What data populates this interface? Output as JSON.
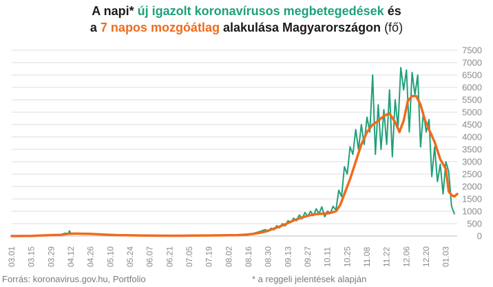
{
  "title": {
    "p1": "A napi* ",
    "p2": "új igazolt koronavírusos megbetegedések",
    "p3": " és",
    "p4": "a ",
    "p5": "7 napos mozgóátlag",
    "p6": " alakulása Magyarországon",
    "p7": " (fő)"
  },
  "footer": {
    "source": "Forrás: koronavirus.gov.hu, Portfolio",
    "note": "* a reggeli jelentések alapján"
  },
  "colors": {
    "daily": "#1fa07a",
    "average": "#ee6b1c",
    "grid": "#dcdcdc",
    "axis_text": "#8a8a8a"
  },
  "chart_data": {
    "type": "line",
    "title": "A napi* új igazolt koronavírusos megbetegedések és a 7 napos mozgóátlag alakulása Magyarországon (fő)",
    "x_ticks": [
      "03.01",
      "03.15",
      "03.29",
      "04.12",
      "04.26",
      "05.10",
      "05.24",
      "06.07",
      "06.21",
      "07.05",
      "07.19",
      "08.02",
      "08.16",
      "08.30",
      "09.13",
      "09.27",
      "10.11",
      "10.25",
      "11.08",
      "11.22",
      "12.06",
      "12.20",
      "01.03"
    ],
    "x_tick_days": [
      0,
      14,
      28,
      42,
      56,
      70,
      84,
      98,
      112,
      126,
      140,
      154,
      168,
      182,
      196,
      210,
      224,
      238,
      252,
      266,
      280,
      294,
      308
    ],
    "y_ticks": [
      0,
      500,
      1000,
      1500,
      2000,
      2500,
      3000,
      3500,
      4000,
      4500,
      5000,
      5500,
      6000,
      6500,
      7000,
      7500
    ],
    "ylim": [
      0,
      7500
    ],
    "y_axis_position": "right",
    "grid": "horizontal",
    "series": [
      {
        "name": "új igazolt koronavírusos megbetegedések",
        "color": "#1fa07a",
        "points": [
          [
            0,
            0
          ],
          [
            14,
            5
          ],
          [
            28,
            40
          ],
          [
            35,
            60
          ],
          [
            38,
            120
          ],
          [
            40,
            100
          ],
          [
            41,
            210
          ],
          [
            42,
            80
          ],
          [
            45,
            110
          ],
          [
            50,
            90
          ],
          [
            55,
            100
          ],
          [
            60,
            70
          ],
          [
            65,
            60
          ],
          [
            70,
            50
          ],
          [
            75,
            40
          ],
          [
            80,
            30
          ],
          [
            90,
            20
          ],
          [
            100,
            15
          ],
          [
            110,
            15
          ],
          [
            120,
            15
          ],
          [
            130,
            20
          ],
          [
            140,
            25
          ],
          [
            150,
            30
          ],
          [
            160,
            40
          ],
          [
            168,
            60
          ],
          [
            172,
            120
          ],
          [
            176,
            180
          ],
          [
            180,
            260
          ],
          [
            182,
            180
          ],
          [
            184,
            320
          ],
          [
            186,
            250
          ],
          [
            188,
            420
          ],
          [
            190,
            330
          ],
          [
            192,
            500
          ],
          [
            194,
            410
          ],
          [
            196,
            620
          ],
          [
            198,
            550
          ],
          [
            200,
            720
          ],
          [
            202,
            620
          ],
          [
            204,
            850
          ],
          [
            206,
            700
          ],
          [
            208,
            950
          ],
          [
            210,
            800
          ],
          [
            212,
            1000
          ],
          [
            214,
            820
          ],
          [
            216,
            1100
          ],
          [
            218,
            900
          ],
          [
            220,
            1180
          ],
          [
            222,
            780
          ],
          [
            224,
            1000
          ],
          [
            226,
            930
          ],
          [
            228,
            1200
          ],
          [
            230,
            1050
          ],
          [
            232,
            1850
          ],
          [
            234,
            1600
          ],
          [
            236,
            2800
          ],
          [
            238,
            2500
          ],
          [
            240,
            3600
          ],
          [
            242,
            3300
          ],
          [
            244,
            4300
          ],
          [
            246,
            3500
          ],
          [
            248,
            4500
          ],
          [
            250,
            3700
          ],
          [
            252,
            4800
          ],
          [
            254,
            4200
          ],
          [
            256,
            6500
          ],
          [
            258,
            3300
          ],
          [
            260,
            5300
          ],
          [
            262,
            3500
          ],
          [
            264,
            5100
          ],
          [
            266,
            3700
          ],
          [
            268,
            5900
          ],
          [
            270,
            3200
          ],
          [
            272,
            5500
          ],
          [
            274,
            4400
          ],
          [
            276,
            6800
          ],
          [
            278,
            5900
          ],
          [
            280,
            6700
          ],
          [
            282,
            4200
          ],
          [
            284,
            6600
          ],
          [
            286,
            5700
          ],
          [
            288,
            6500
          ],
          [
            290,
            3600
          ],
          [
            292,
            5000
          ],
          [
            294,
            4200
          ],
          [
            296,
            4700
          ],
          [
            298,
            2400
          ],
          [
            300,
            3600
          ],
          [
            302,
            2200
          ],
          [
            304,
            2900
          ],
          [
            306,
            1700
          ],
          [
            308,
            3000
          ],
          [
            310,
            2600
          ],
          [
            312,
            1200
          ],
          [
            314,
            900
          ]
        ]
      },
      {
        "name": "7 napos mozgóátlag",
        "color": "#ee6b1c",
        "points": [
          [
            0,
            0
          ],
          [
            14,
            5
          ],
          [
            28,
            40
          ],
          [
            35,
            50
          ],
          [
            40,
            90
          ],
          [
            45,
            100
          ],
          [
            50,
            95
          ],
          [
            55,
            90
          ],
          [
            60,
            75
          ],
          [
            65,
            60
          ],
          [
            70,
            50
          ],
          [
            75,
            40
          ],
          [
            80,
            35
          ],
          [
            90,
            25
          ],
          [
            100,
            18
          ],
          [
            110,
            15
          ],
          [
            120,
            15
          ],
          [
            130,
            20
          ],
          [
            140,
            25
          ],
          [
            150,
            30
          ],
          [
            160,
            40
          ],
          [
            166,
            55
          ],
          [
            170,
            80
          ],
          [
            175,
            120
          ],
          [
            180,
            180
          ],
          [
            185,
            280
          ],
          [
            190,
            380
          ],
          [
            195,
            500
          ],
          [
            200,
            630
          ],
          [
            205,
            730
          ],
          [
            210,
            820
          ],
          [
            215,
            880
          ],
          [
            220,
            900
          ],
          [
            225,
            920
          ],
          [
            230,
            1000
          ],
          [
            233,
            1250
          ],
          [
            236,
            1700
          ],
          [
            240,
            2300
          ],
          [
            244,
            3000
          ],
          [
            248,
            3700
          ],
          [
            252,
            4200
          ],
          [
            256,
            4500
          ],
          [
            260,
            4650
          ],
          [
            264,
            4850
          ],
          [
            268,
            4950
          ],
          [
            272,
            4600
          ],
          [
            275,
            4200
          ],
          [
            278,
            4650
          ],
          [
            281,
            5450
          ],
          [
            284,
            5650
          ],
          [
            287,
            5650
          ],
          [
            290,
            5300
          ],
          [
            293,
            4700
          ],
          [
            296,
            4300
          ],
          [
            300,
            3800
          ],
          [
            304,
            3100
          ],
          [
            308,
            2700
          ],
          [
            310,
            1800
          ],
          [
            312,
            1650
          ],
          [
            314,
            1600
          ],
          [
            316,
            1700
          ]
        ]
      }
    ]
  }
}
